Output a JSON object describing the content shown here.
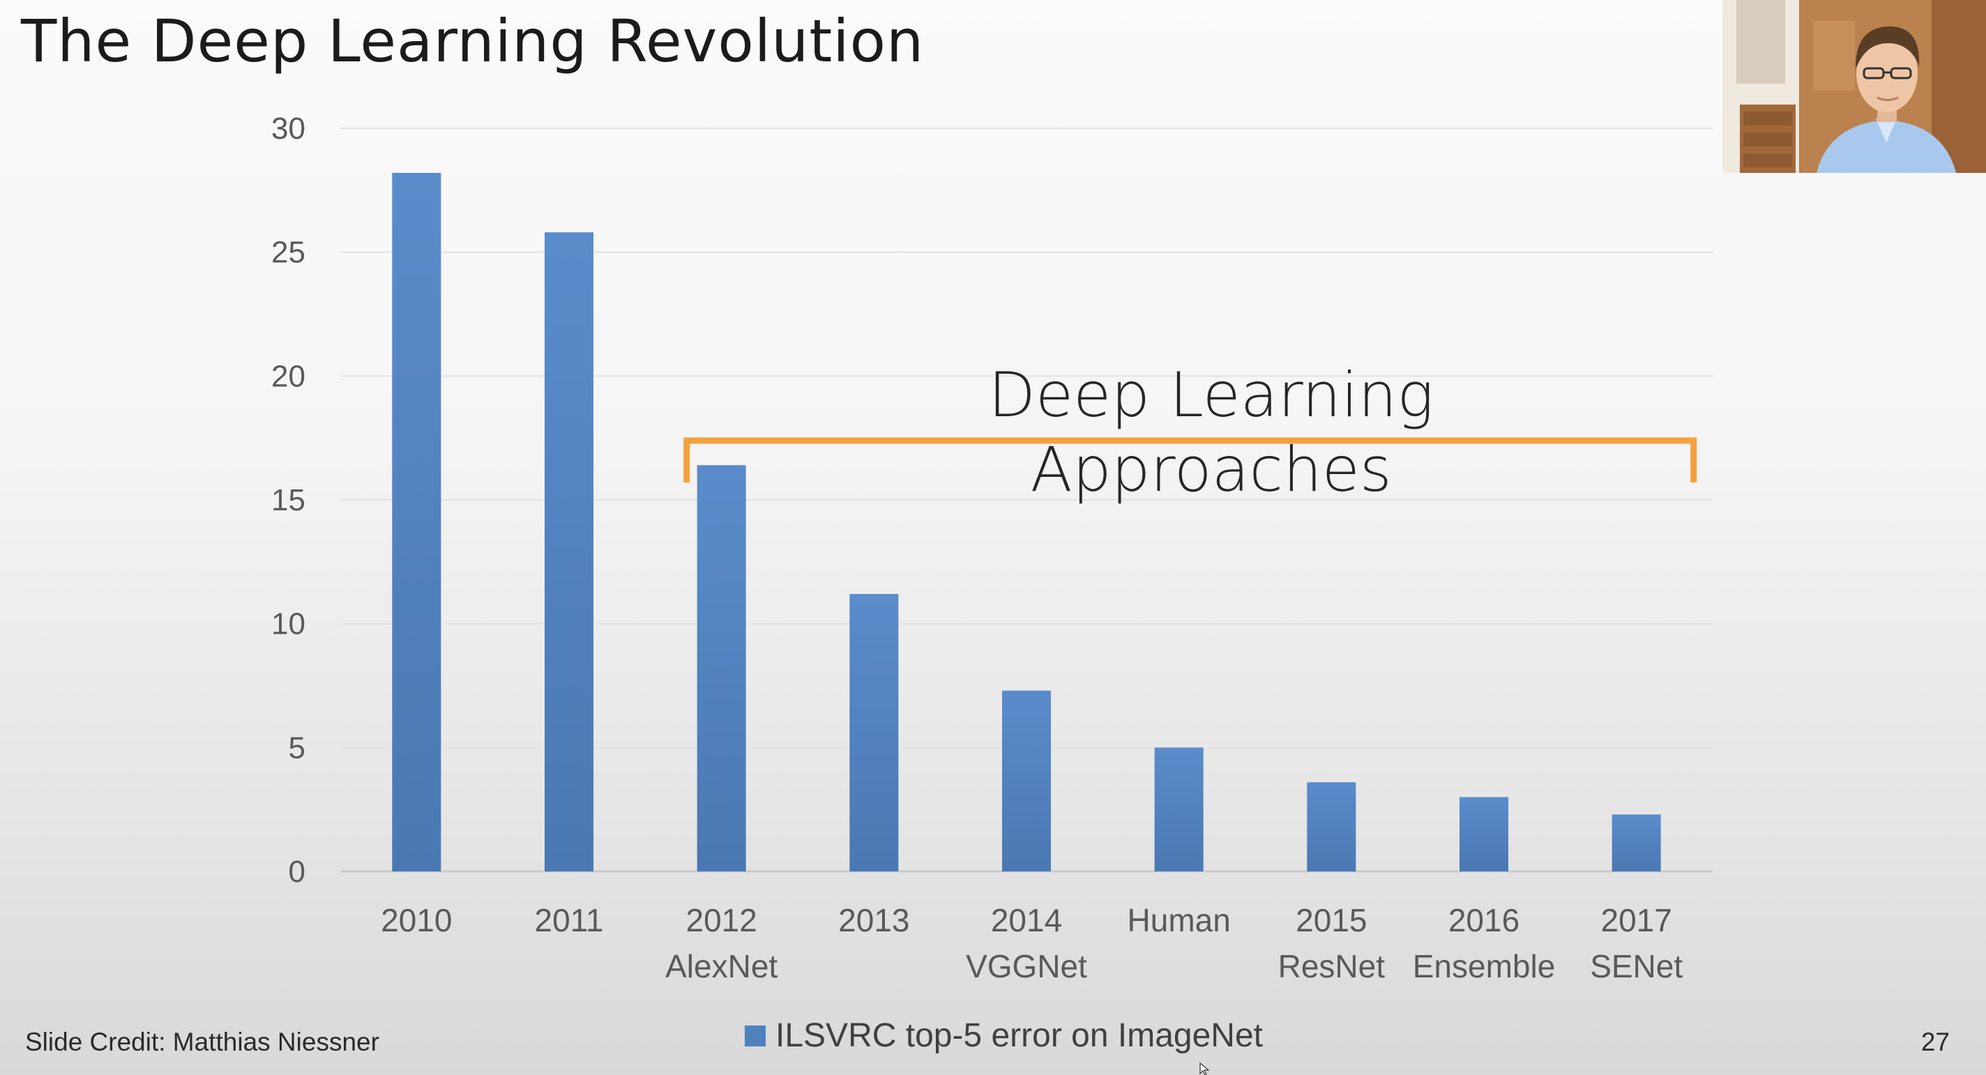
{
  "slide": {
    "title": "The Deep Learning Revolution",
    "credit": "Slide Credit: Matthias Niessner",
    "page_number": "27"
  },
  "chart_data": {
    "type": "bar",
    "title": "",
    "xlabel": "",
    "ylabel": "",
    "ylim": [
      0,
      30
    ],
    "yticks": [
      0,
      5,
      10,
      15,
      20,
      25,
      30
    ],
    "grid": true,
    "legend_position": "bottom",
    "categories": [
      [
        "2010"
      ],
      [
        "2011"
      ],
      [
        "2012",
        "AlexNet"
      ],
      [
        "2013"
      ],
      [
        "2014",
        "VGGNet"
      ],
      [
        "Human"
      ],
      [
        "2015",
        "ResNet"
      ],
      [
        "2016",
        "Ensemble"
      ],
      [
        "2017",
        "SENet"
      ]
    ],
    "series": [
      {
        "name": "ILSVRC top-5 error on ImageNet",
        "color": "#4f81bd",
        "values": [
          28.2,
          25.8,
          16.4,
          11.2,
          7.3,
          5.0,
          3.6,
          3.0,
          2.3
        ]
      }
    ],
    "annotation": {
      "lines": [
        "Deep Learning",
        "Approaches"
      ],
      "color": "#f4a13d",
      "from_category": 2,
      "to_category": 8
    }
  },
  "webcam": {
    "icon": "person-webcam-icon"
  }
}
